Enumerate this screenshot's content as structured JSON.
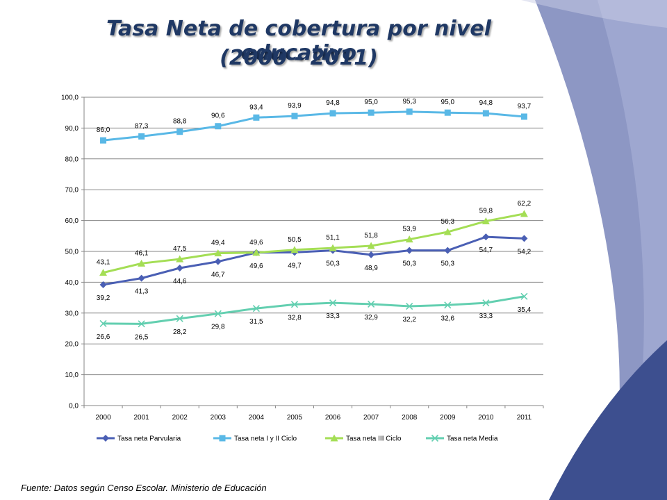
{
  "title_line1": "Tasa Neta de cobertura por nivel educativo",
  "title_line2": "(2000 - 2011)",
  "source": "Fuente: Datos según Censo Escolar. Ministerio de Educación",
  "colors": {
    "title": "#1f3864",
    "deco_dark": "#3d4f8f",
    "deco_light": "#8d97c4",
    "grid": "#868686"
  },
  "chart_data": {
    "type": "line",
    "categories": [
      "2000",
      "2001",
      "2002",
      "2003",
      "2004",
      "2005",
      "2006",
      "2007",
      "2008",
      "2009",
      "2010",
      "2011"
    ],
    "ylim": [
      0,
      100
    ],
    "yticks": [
      "0,0",
      "10,0",
      "20,0",
      "30,0",
      "40,0",
      "50,0",
      "60,0",
      "70,0",
      "80,0",
      "90,0",
      "100,0"
    ],
    "grid": true,
    "legend_position": "bottom",
    "series": [
      {
        "name": "Tasa neta  Parvularia",
        "color": "#4a5fb4",
        "marker": "diamond",
        "label_position": "below",
        "values": [
          39.2,
          41.3,
          44.6,
          46.7,
          49.6,
          49.7,
          50.3,
          48.9,
          50.3,
          50.3,
          54.7,
          54.2
        ],
        "labels": [
          "39,2",
          "41,3",
          "44,6",
          "46,7",
          "49,6",
          "49,7",
          "50,3",
          "48,9",
          "50,3",
          "50,3",
          "54,7",
          "54,2"
        ]
      },
      {
        "name": "Tasa neta  I y II Ciclo",
        "color": "#59b8e6",
        "marker": "square",
        "label_position": "above",
        "values": [
          86.0,
          87.3,
          88.8,
          90.6,
          93.4,
          93.9,
          94.8,
          95.0,
          95.3,
          95.0,
          94.8,
          93.7
        ],
        "labels": [
          "86,0",
          "87,3",
          "88,8",
          "90,6",
          "93,4",
          "93,9",
          "94,8",
          "95,0",
          "95,3",
          "95,0",
          "94,8",
          "93,7"
        ]
      },
      {
        "name": "Tasa neta III Ciclo",
        "color": "#a4de55",
        "marker": "triangle",
        "label_position": "above",
        "values": [
          43.1,
          46.1,
          47.5,
          49.4,
          49.6,
          50.5,
          51.1,
          51.8,
          53.9,
          56.3,
          59.8,
          62.2
        ],
        "labels": [
          "43,1",
          "46,1",
          "47,5",
          "49,4",
          "49,6",
          "50,5",
          "51,1",
          "51,8",
          "53,9",
          "56,3",
          "59,8",
          "62,2"
        ]
      },
      {
        "name": "Tasa neta Media",
        "color": "#63cfb0",
        "marker": "x",
        "label_position": "below",
        "values": [
          26.6,
          26.5,
          28.2,
          29.8,
          31.5,
          32.8,
          33.3,
          32.9,
          32.2,
          32.6,
          33.3,
          35.4
        ],
        "labels": [
          "26,6",
          "26,5",
          "28,2",
          "29,8",
          "31,5",
          "32,8",
          "33,3",
          "32,9",
          "32,2",
          "32,6",
          "33,3",
          "35,4"
        ]
      }
    ]
  }
}
